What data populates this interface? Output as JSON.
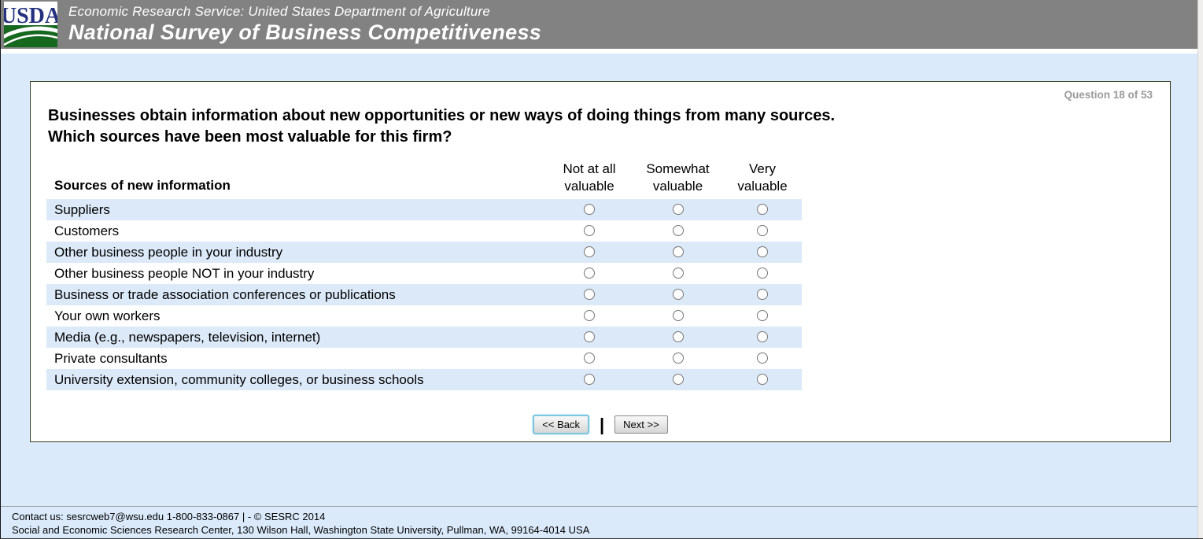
{
  "header": {
    "logo_text": "USDA",
    "agency_line": "Economic Research Service: United States Department of Agriculture",
    "survey_title": "National Survey of Business Competitiveness"
  },
  "question": {
    "progress": "Question 18 of 53",
    "title_line1": "Businesses obtain information about new opportunities or new ways of doing things from many sources.",
    "title_line2": "Which sources have been most valuable for this firm?"
  },
  "table": {
    "row_header": "Sources of new information",
    "columns": [
      {
        "key": "not-at-all-valuable",
        "line1": "Not at all",
        "line2": "valuable"
      },
      {
        "key": "somewhat-valuable",
        "line1": "Somewhat",
        "line2": "valuable"
      },
      {
        "key": "very-valuable",
        "line1": "Very",
        "line2": "valuable"
      }
    ],
    "rows": [
      "Suppliers",
      "Customers",
      "Other business people in your industry",
      "Other business people NOT in your industry",
      "Business or trade association conferences or publications",
      "Your own workers",
      "Media (e.g., newspapers, television, internet)",
      "Private consultants",
      "University extension, community colleges, or business schools"
    ]
  },
  "navigation": {
    "back_label": "<< Back",
    "separator": "|",
    "next_label": "Next >>"
  },
  "footer": {
    "line1": "Contact us: sesrcweb7@wsu.edu 1-800-833-0867 | - © SESRC 2014",
    "line2": "Social and Economic Sciences Research Center, 130 Wilson Hall, Washington State University, Pullman, WA, 99164-4014 USA"
  },
  "colors": {
    "header_bg": "#828282",
    "page_bg": "#dbeafb",
    "row_alt_bg": "#dce9f8",
    "panel_border": "#36401f",
    "progress_text": "#9a9a9a",
    "logo_blue": "#25317e",
    "logo_green": "#17681f",
    "back_button_focus_border": "#7cc5e0"
  }
}
